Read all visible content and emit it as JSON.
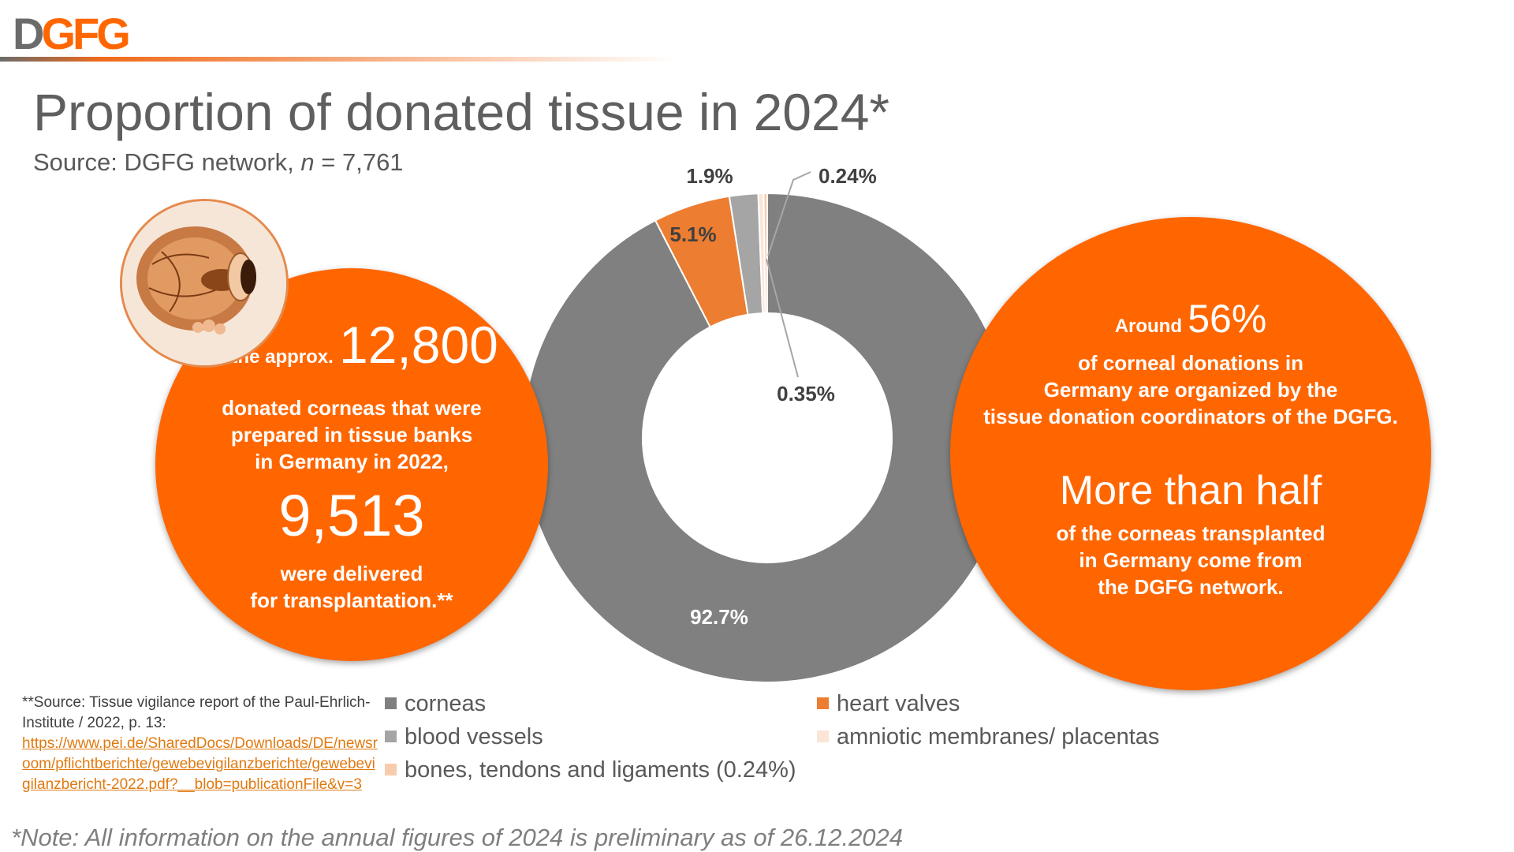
{
  "logo": {
    "text": "DGFG"
  },
  "title": "Proportion of donated tissue in 2024*",
  "subtitle": {
    "prefix": "Source: DGFG network, ",
    "n_label": "n",
    "suffix": " = 7,761"
  },
  "left_circle": {
    "line1_small": "Of the approx.",
    "line1_big": "12,800",
    "line2": "donated corneas that were",
    "line3": "prepared in tissue banks",
    "line4": "in Germany in 2022,",
    "big2": "9,513",
    "line5": "were delivered",
    "line6": "for transplantation.**"
  },
  "right_circle": {
    "line1_small": "Around",
    "line1_big": "56%",
    "line2": "of corneal donations in",
    "line3": "Germany are organized by the",
    "line4": "tissue donation coordinators of the DGFG.",
    "big2": "More than half",
    "line5": "of the corneas transplanted",
    "line6": "in Germany come from",
    "line7": "the DGFG network."
  },
  "chart_data": {
    "type": "pie",
    "donut": true,
    "series": [
      {
        "name": "corneas",
        "value": 92.7,
        "label": "92.7%",
        "color": "#808080"
      },
      {
        "name": "heart valves",
        "value": 5.1,
        "label": "5.1%",
        "color": "#ed7d31"
      },
      {
        "name": "blood vessels",
        "value": 1.9,
        "label": "1.9%",
        "color": "#a5a5a5"
      },
      {
        "name": "amniotic membranes/ placentas",
        "value": 0.35,
        "label": "0.35%",
        "color": "#fbe5d6"
      },
      {
        "name": "bones, tendons and ligaments (0.24%)",
        "value": 0.24,
        "label": "0.24%",
        "color": "#f8cbad"
      }
    ]
  },
  "legend": [
    {
      "label": "corneas",
      "color": "#7f7f7f"
    },
    {
      "label": "heart valves",
      "color": "#ed7d31"
    },
    {
      "label": "blood vessels",
      "color": "#a5a5a5"
    },
    {
      "label": "amniotic membranes/ placentas",
      "color": "#fbe5d6"
    },
    {
      "label": "bones, tendons and ligaments (0.24%)",
      "color": "#f8cbad"
    }
  ],
  "footnote": {
    "text": "**Source: Tissue vigilance report of the Paul-Ehrlich-Institute / 2022, p. 13:",
    "link": "https://www.pei.de/SharedDocs/Downloads/DE/newsroom/pflichtberichte/gewebevigilanzberichte/gewebevigilanzbericht-2022.pdf?__blob=publicationFile&v=3"
  },
  "note": "*Note: All information on the annual figures of 2024 is preliminary as of 26.12.2024"
}
